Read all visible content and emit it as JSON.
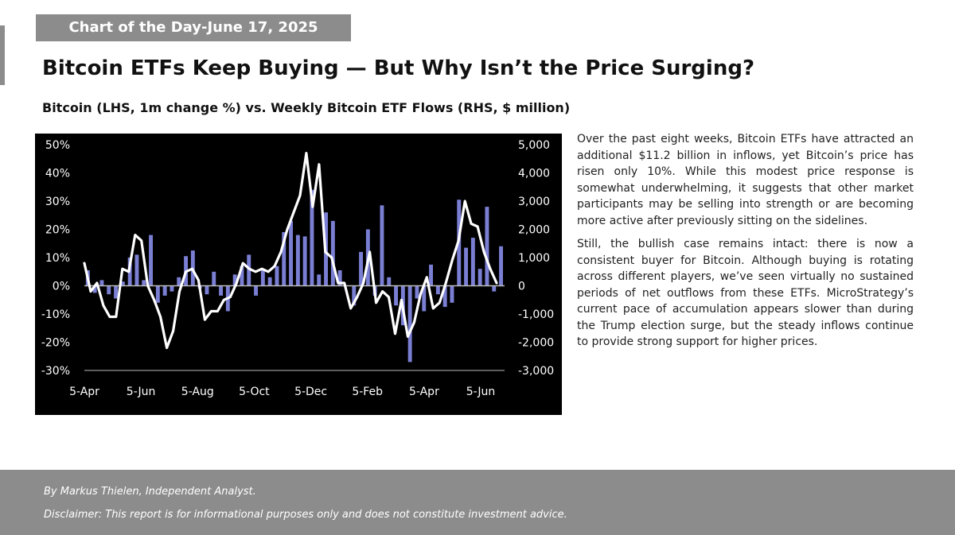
{
  "header": {
    "banner": "Chart of the Day-June 17, 2025",
    "title": "Bitcoin ETFs Keep Buying — But Why Isn’t the Price Surging?",
    "subtitle": "Bitcoin (LHS, 1m change %) vs. Weekly Bitcoin ETF Flows (RHS, $ million)"
  },
  "body": {
    "paragraphs": [
      "Over the past eight weeks, Bitcoin ETFs have attracted an additional $11.2 billion in inflows, yet Bitcoin’s price has risen only 10%. While this modest price response is somewhat underwhelming, it suggests that other market participants may be selling into strength or are becoming more active after previously sitting on the sidelines.",
      "Still, the bullish case remains intact: there is now a consistent buyer for Bitcoin. Although buying is rotating across different players, we’ve seen virtually no sustained periods of net outflows from these ETFs. MicroStrategy’s current pace of accumulation appears slower than during the Trump election surge, but the steady inflows continue to provide strong support for higher prices."
    ]
  },
  "footer": {
    "author": "By Markus Thielen, Independent Analyst.",
    "disclaimer": "Disclaimer: This report is for informational purposes only and does not constitute investment advice."
  },
  "colors": {
    "background": "#000000",
    "line": "#ffffff",
    "bars": "#7b7fd4",
    "zero_line": "#bbbbbb",
    "accent_gray": "#8c8c8c"
  },
  "chart_data": {
    "type": "bar",
    "title": "",
    "grid": false,
    "legend": "none",
    "x_tick_labels": [
      "5-Apr",
      "5-Jun",
      "5-Aug",
      "5-Oct",
      "5-Dec",
      "5-Feb",
      "5-Apr",
      "5-Jun"
    ],
    "y_left": {
      "ylim": [
        -30,
        50
      ],
      "ticks": [
        "50%",
        "40%",
        "30%",
        "20%",
        "10%",
        "0%",
        "-10%",
        "-20%",
        "-30%"
      ]
    },
    "y_right": {
      "ylim": [
        -3000,
        5000
      ],
      "ticks": [
        "5,000",
        "4,000",
        "3,000",
        "2,000",
        "1,000",
        "0",
        "-1,000",
        "-2,000",
        "-3,000"
      ]
    },
    "series": [
      {
        "type": "bar",
        "axis": "right",
        "values": [
          550,
          -250,
          200,
          -300,
          -450,
          150,
          1000,
          1100,
          200,
          1800,
          -600,
          -350,
          -200,
          300,
          1050,
          1250,
          -100,
          -300,
          500,
          -350,
          -900,
          400,
          700,
          1100,
          -350,
          550,
          300,
          700,
          1900,
          2300,
          1800,
          1750,
          3400,
          400,
          2600,
          2300,
          550,
          0,
          -700,
          1200,
          2000,
          -350,
          2850,
          300,
          -700,
          -1400,
          -2700,
          -450,
          -900,
          750,
          -300,
          -750,
          -600,
          3050,
          1350,
          1700,
          600,
          2800,
          -200,
          1400
        ]
      },
      {
        "type": "line",
        "axis": "left",
        "values": [
          8,
          -2,
          1,
          -7,
          -11,
          -11,
          6,
          5,
          18,
          16,
          0,
          -5,
          -11,
          -22,
          -16,
          -2,
          5,
          6,
          2,
          -12,
          -9,
          -9,
          -5,
          -4,
          1,
          8,
          6,
          5,
          6,
          5,
          7,
          12,
          20,
          26,
          32,
          47,
          28,
          43,
          12,
          10,
          1,
          1,
          -8,
          -4,
          1,
          12,
          -6,
          -2,
          -4,
          -17,
          -5,
          -18,
          -13,
          -3,
          3,
          -8,
          -6,
          1,
          9,
          16,
          30,
          22,
          21,
          12,
          6,
          1
        ]
      }
    ]
  }
}
